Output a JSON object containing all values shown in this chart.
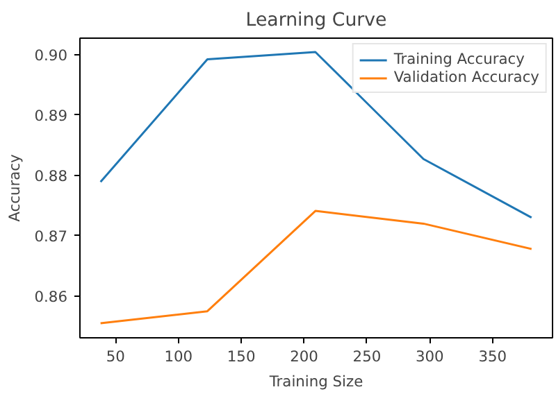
{
  "chart_data": {
    "type": "line",
    "title": "Learning Curve",
    "xlabel": "Training Size",
    "ylabel": "Accuracy",
    "x": [
      38,
      123,
      209,
      295,
      381
    ],
    "series": [
      {
        "name": "Training Accuracy",
        "color": "#1f77b4",
        "values": [
          0.8789,
          0.8992,
          0.9004,
          0.8827,
          0.873
        ]
      },
      {
        "name": "Validation Accuracy",
        "color": "#ff7f0e",
        "values": [
          0.8555,
          0.8575,
          0.8741,
          0.872,
          0.8678
        ]
      }
    ],
    "xlim": [
      21.6,
      397.7
    ],
    "ylim": [
      0.8531,
      0.9027
    ],
    "xticks": [
      50,
      100,
      150,
      200,
      250,
      300,
      350
    ],
    "yticks": [
      {
        "value": 0.86,
        "label": "0.86"
      },
      {
        "value": 0.87,
        "label": "0.87"
      },
      {
        "value": 0.88,
        "label": "0.88"
      },
      {
        "value": 0.89,
        "label": "0.89"
      },
      {
        "value": 0.9,
        "label": "0.90"
      }
    ],
    "grid": false,
    "legend": "top right",
    "marker": "none",
    "line_style": "solid"
  }
}
